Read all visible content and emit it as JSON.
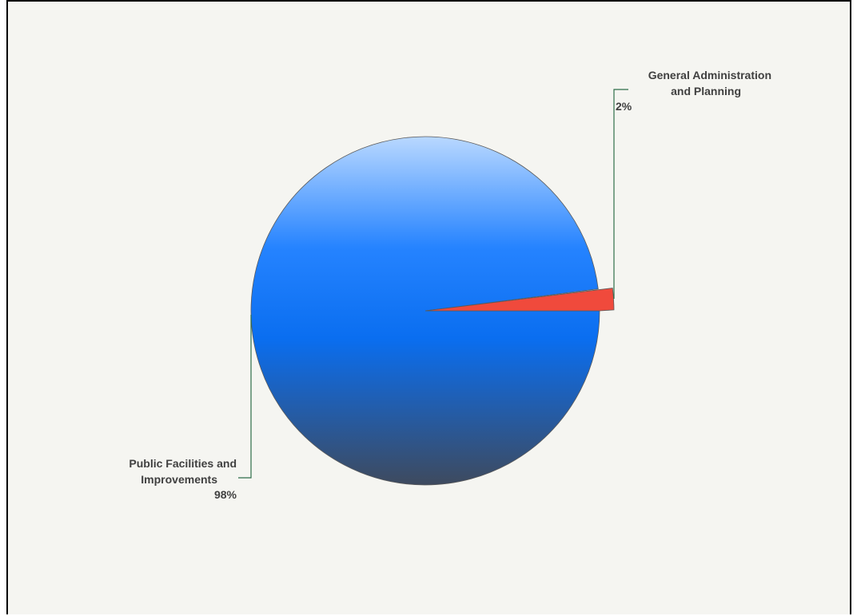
{
  "colors": {
    "background": "#f5f5f1",
    "leader_line": "#2e6e4a",
    "label_text": "#404040",
    "slice_outline": "#5a5a5a"
  },
  "chart_data": {
    "type": "pie",
    "title": "",
    "slices": [
      {
        "label_lines": [
          "Public Facilities and",
          "Improvements"
        ],
        "value": 98,
        "percent_label": "98%",
        "color": "#1a7cf5",
        "gradient": [
          "#b9d8ff",
          "#2583ff",
          "#0a6ef0",
          "#3e4a5e"
        ]
      },
      {
        "label_lines": [
          "General Administration",
          "and Planning"
        ],
        "value": 2,
        "percent_label": "2%",
        "color": "#f04a3c",
        "gradient": [
          "#f04a3c",
          "#f04a3c",
          "#f04a3c",
          "#f04a3c"
        ]
      }
    ]
  }
}
